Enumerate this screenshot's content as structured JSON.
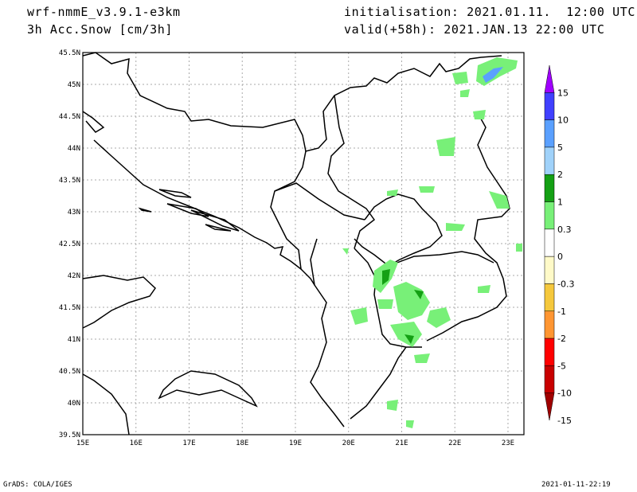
{
  "header": {
    "model": "wrf-nmmE_v3.9.1-e3km",
    "field": "3h Acc.Snow [cm/3h]",
    "init": "initialisation: 2021.01.11.  12:00 UTC",
    "valid": "valid(+58h): 2021.JAN.13 22:00 UTC"
  },
  "map": {
    "lon_range": [
      15,
      23.3
    ],
    "lat_range": [
      39.5,
      45.5
    ],
    "lon_ticks": [
      "15E",
      "16E",
      "17E",
      "18E",
      "19E",
      "20E",
      "21E",
      "22E",
      "23E"
    ],
    "lat_ticks": [
      "39.5N",
      "40N",
      "40.5N",
      "41N",
      "41.5N",
      "42N",
      "42.5N",
      "43N",
      "43.5N",
      "44N",
      "44.5N",
      "45N",
      "45.5N"
    ],
    "grid": true
  },
  "colorbar": {
    "labels": [
      "15",
      "10",
      "5",
      "2",
      "1",
      "0.3",
      "0",
      "-0.3",
      "-1",
      "-2",
      "-5",
      "-10",
      "-15"
    ],
    "colors": [
      "#a000ff",
      "#4040ff",
      "#5aa0ff",
      "#a0d2fa",
      "#14a014",
      "#78f078",
      "#ffffff",
      "#fffac8",
      "#f5c83c",
      "#ff9632",
      "#ff0000",
      "#c80000",
      "#a00000"
    ]
  },
  "footer": {
    "left": "GrADS: COLA/IGES",
    "right": "2021-01-11-22:19"
  }
}
